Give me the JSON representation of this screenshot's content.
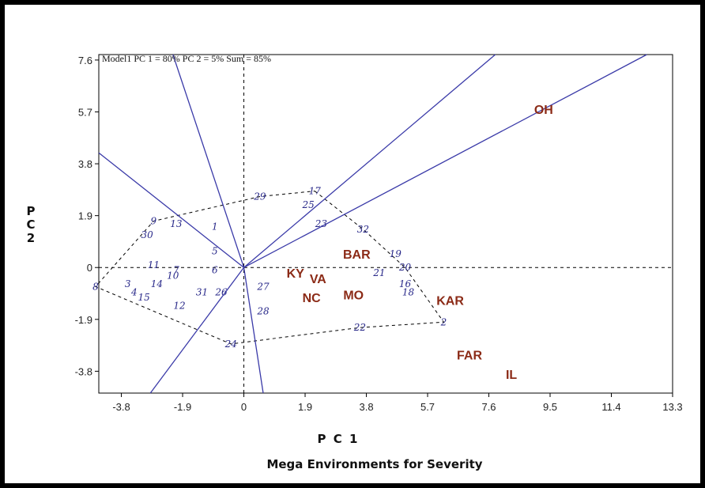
{
  "chart_data": {
    "type": "scatter",
    "title": "Model1 PC 1 = 80% PC 2 = 5% Sum = 85%",
    "subtitle": "Mega Environments for Severity",
    "xlabel": "P C 1",
    "ylabel": "P C 2",
    "xlim": [
      -4.5,
      13.3
    ],
    "ylim": [
      -4.6,
      7.8
    ],
    "x_ticks": [
      "-3.8",
      "-1.9",
      "0",
      "1.9",
      "3.8",
      "5.7",
      "7.6",
      "9.5",
      "11.4",
      "13.3"
    ],
    "y_ticks": [
      "7.6",
      "5.7",
      "3.8",
      "1.9",
      "0",
      "-1.9",
      "-3.8"
    ],
    "reference_lines": {
      "x": 0,
      "y": 0,
      "style": "dashed"
    },
    "environments": [
      {
        "name": "OH",
        "x": 9.3,
        "y": 5.8
      },
      {
        "name": "BAR",
        "x": 3.5,
        "y": 0.5
      },
      {
        "name": "KY",
        "x": 1.6,
        "y": -0.2
      },
      {
        "name": "VA",
        "x": 2.3,
        "y": -0.4
      },
      {
        "name": "NC",
        "x": 2.1,
        "y": -1.1
      },
      {
        "name": "MO",
        "x": 3.4,
        "y": -1.0
      },
      {
        "name": "KAR",
        "x": 6.4,
        "y": -1.2
      },
      {
        "name": "FAR",
        "x": 7.0,
        "y": -3.2
      },
      {
        "name": "IL",
        "x": 8.3,
        "y": -3.9
      }
    ],
    "genotypes": [
      {
        "name": "1",
        "x": -0.9,
        "y": 1.5
      },
      {
        "name": "2",
        "x": 6.2,
        "y": -2.0
      },
      {
        "name": "3",
        "x": -3.6,
        "y": -0.6
      },
      {
        "name": "4",
        "x": -3.4,
        "y": -0.9
      },
      {
        "name": "5",
        "x": -0.9,
        "y": 0.6
      },
      {
        "name": "6",
        "x": -0.9,
        "y": -0.1
      },
      {
        "name": "7",
        "x": -2.1,
        "y": -0.1
      },
      {
        "name": "8",
        "x": -4.6,
        "y": -0.7
      },
      {
        "name": "9",
        "x": -2.8,
        "y": 1.7
      },
      {
        "name": "10",
        "x": -2.2,
        "y": -0.3
      },
      {
        "name": "11",
        "x": -2.8,
        "y": 0.1
      },
      {
        "name": "12",
        "x": -2.0,
        "y": -1.4
      },
      {
        "name": "13",
        "x": -2.1,
        "y": 1.6
      },
      {
        "name": "14",
        "x": -2.7,
        "y": -0.6
      },
      {
        "name": "15",
        "x": -3.1,
        "y": -1.1
      },
      {
        "name": "16",
        "x": 5.0,
        "y": -0.6
      },
      {
        "name": "17",
        "x": 2.2,
        "y": 2.8
      },
      {
        "name": "18",
        "x": 5.1,
        "y": -0.9
      },
      {
        "name": "19",
        "x": 4.7,
        "y": 0.5
      },
      {
        "name": "20",
        "x": 5.0,
        "y": 0.0
      },
      {
        "name": "21",
        "x": 4.2,
        "y": -0.2
      },
      {
        "name": "22",
        "x": 3.6,
        "y": -2.2
      },
      {
        "name": "23",
        "x": 2.4,
        "y": 1.6
      },
      {
        "name": "24",
        "x": -0.4,
        "y": -2.8
      },
      {
        "name": "25",
        "x": 2.0,
        "y": 2.3
      },
      {
        "name": "26",
        "x": -0.7,
        "y": -0.9
      },
      {
        "name": "27",
        "x": 0.6,
        "y": -0.7
      },
      {
        "name": "28",
        "x": 0.6,
        "y": -1.6
      },
      {
        "name": "29",
        "x": 0.5,
        "y": 2.6
      },
      {
        "name": "30",
        "x": -3.0,
        "y": 1.2
      },
      {
        "name": "31",
        "x": -1.3,
        "y": -0.9
      },
      {
        "name": "32",
        "x": 3.7,
        "y": 1.4
      }
    ],
    "hull": [
      "17",
      "32",
      "20",
      "2",
      "22",
      "24",
      "8",
      "9",
      "29"
    ],
    "sector_lines": [
      {
        "x": -4.5,
        "y": 4.2
      },
      {
        "x": -2.2,
        "y": 7.8
      },
      {
        "x": 7.8,
        "y": 7.8
      },
      {
        "x": 13.3,
        "y": 8.3
      },
      {
        "x": 0.6,
        "y": -4.6
      },
      {
        "x": -2.9,
        "y": -4.6
      }
    ]
  }
}
